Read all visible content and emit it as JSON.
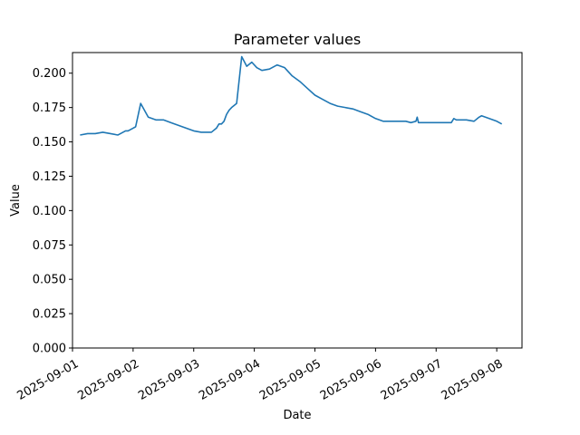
{
  "chart_data": {
    "type": "line",
    "title": "Parameter values",
    "xlabel": "Date",
    "ylabel": "Value",
    "xlim": [
      "2025-09-01T00:00",
      "2025-09-08T10:00"
    ],
    "ylim": [
      0,
      0.215
    ],
    "x_ticks": [
      "2025-09-01",
      "2025-09-02",
      "2025-09-03",
      "2025-09-04",
      "2025-09-05",
      "2025-09-06",
      "2025-09-07",
      "2025-09-08"
    ],
    "y_ticks": [
      "0.000",
      "0.025",
      "0.050",
      "0.075",
      "0.100",
      "0.125",
      "0.150",
      "0.175",
      "0.200"
    ],
    "grid": false,
    "legend": "none",
    "color": "#1f77b4",
    "series": [
      {
        "x": [
          "2025-09-01T03:00",
          "2025-09-01T06:00",
          "2025-09-01T09:00",
          "2025-09-01T12:00",
          "2025-09-01T15:00",
          "2025-09-01T18:00",
          "2025-09-01T21:00",
          "2025-09-01T22:00",
          "2025-09-01T23:00",
          "2025-09-02T00:00",
          "2025-09-02T01:00",
          "2025-09-02T03:00",
          "2025-09-02T06:00",
          "2025-09-02T09:00",
          "2025-09-02T12:00",
          "2025-09-02T15:00",
          "2025-09-02T18:00",
          "2025-09-02T21:00",
          "2025-09-03T00:00",
          "2025-09-03T03:00",
          "2025-09-03T05:00",
          "2025-09-03T07:00",
          "2025-09-03T09:00",
          "2025-09-03T10:00",
          "2025-09-03T11:00",
          "2025-09-03T12:00",
          "2025-09-03T13:00",
          "2025-09-03T14:00",
          "2025-09-03T15:00",
          "2025-09-03T17:00",
          "2025-09-03T19:00",
          "2025-09-03T21:00",
          "2025-09-03T23:00",
          "2025-09-04T01:00",
          "2025-09-04T03:00",
          "2025-09-04T06:00",
          "2025-09-04T09:00",
          "2025-09-04T12:00",
          "2025-09-04T15:00",
          "2025-09-04T18:00",
          "2025-09-04T21:00",
          "2025-09-05T00:00",
          "2025-09-05T03:00",
          "2025-09-05T06:00",
          "2025-09-05T09:00",
          "2025-09-05T12:00",
          "2025-09-05T15:00",
          "2025-09-05T18:00",
          "2025-09-05T21:00",
          "2025-09-06T00:00",
          "2025-09-06T03:00",
          "2025-09-06T06:00",
          "2025-09-06T09:00",
          "2025-09-06T12:00",
          "2025-09-06T14:00",
          "2025-09-06T16:00",
          "2025-09-06T16:30",
          "2025-09-06T17:00",
          "2025-09-06T18:00",
          "2025-09-06T21:00",
          "2025-09-07T00:00",
          "2025-09-07T03:00",
          "2025-09-07T06:00",
          "2025-09-07T07:00",
          "2025-09-07T08:00",
          "2025-09-07T09:00",
          "2025-09-07T12:00",
          "2025-09-07T15:00",
          "2025-09-07T17:00",
          "2025-09-07T18:00",
          "2025-09-07T21:00",
          "2025-09-08T00:00",
          "2025-09-08T02:00"
        ],
        "y": [
          0.155,
          0.156,
          0.156,
          0.157,
          0.156,
          0.155,
          0.158,
          0.158,
          0.159,
          0.16,
          0.161,
          0.178,
          0.168,
          0.166,
          0.166,
          0.164,
          0.162,
          0.16,
          0.158,
          0.157,
          0.157,
          0.157,
          0.16,
          0.163,
          0.163,
          0.165,
          0.17,
          0.173,
          0.175,
          0.178,
          0.212,
          0.205,
          0.208,
          0.204,
          0.202,
          0.203,
          0.206,
          0.204,
          0.198,
          0.194,
          0.189,
          0.184,
          0.181,
          0.178,
          0.176,
          0.175,
          0.174,
          0.172,
          0.17,
          0.167,
          0.165,
          0.165,
          0.165,
          0.165,
          0.164,
          0.165,
          0.168,
          0.164,
          0.164,
          0.164,
          0.164,
          0.164,
          0.164,
          0.167,
          0.166,
          0.166,
          0.166,
          0.165,
          0.168,
          0.169,
          0.167,
          0.165,
          0.163
        ]
      }
    ]
  }
}
